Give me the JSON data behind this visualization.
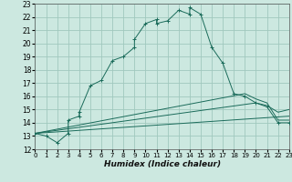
{
  "xlabel": "Humidex (Indice chaleur)",
  "bg_color": "#cce8e0",
  "grid_color": "#a0c8be",
  "line_color": "#1a6b5a",
  "xlim": [
    0,
    23
  ],
  "ylim": [
    12,
    23
  ],
  "xticks": [
    0,
    1,
    2,
    3,
    4,
    5,
    6,
    7,
    8,
    9,
    10,
    11,
    12,
    13,
    14,
    15,
    16,
    17,
    18,
    19,
    20,
    21,
    22,
    23
  ],
  "yticks": [
    12,
    13,
    14,
    15,
    16,
    17,
    18,
    19,
    20,
    21,
    22,
    23
  ],
  "main_line": [
    [
      0,
      13.2
    ],
    [
      1,
      13.0
    ],
    [
      2,
      12.5
    ],
    [
      3,
      13.2
    ],
    [
      3,
      14.2
    ],
    [
      4,
      14.5
    ],
    [
      4,
      14.8
    ],
    [
      5,
      16.8
    ],
    [
      6,
      17.2
    ],
    [
      7,
      18.7
    ],
    [
      8,
      19.0
    ],
    [
      9,
      19.7
    ],
    [
      9,
      20.3
    ],
    [
      10,
      21.5
    ],
    [
      11,
      21.8
    ],
    [
      11,
      21.5
    ],
    [
      12,
      21.7
    ],
    [
      13,
      22.5
    ],
    [
      14,
      22.2
    ],
    [
      14,
      22.7
    ],
    [
      15,
      22.2
    ],
    [
      16,
      19.7
    ],
    [
      17,
      18.5
    ],
    [
      18,
      16.2
    ],
    [
      19,
      16.0
    ],
    [
      20,
      15.5
    ],
    [
      21,
      15.2
    ],
    [
      22,
      14.0
    ],
    [
      23,
      14.0
    ]
  ],
  "line2": [
    [
      0,
      13.2
    ],
    [
      23,
      14.5
    ]
  ],
  "line3": [
    [
      0,
      13.2
    ],
    [
      20,
      15.5
    ],
    [
      21,
      15.3
    ],
    [
      22,
      14.8
    ],
    [
      23,
      15.0
    ]
  ],
  "line4": [
    [
      0,
      13.2
    ],
    [
      19,
      16.2
    ],
    [
      20,
      15.8
    ],
    [
      21,
      15.5
    ],
    [
      22,
      14.2
    ],
    [
      23,
      14.2
    ]
  ]
}
